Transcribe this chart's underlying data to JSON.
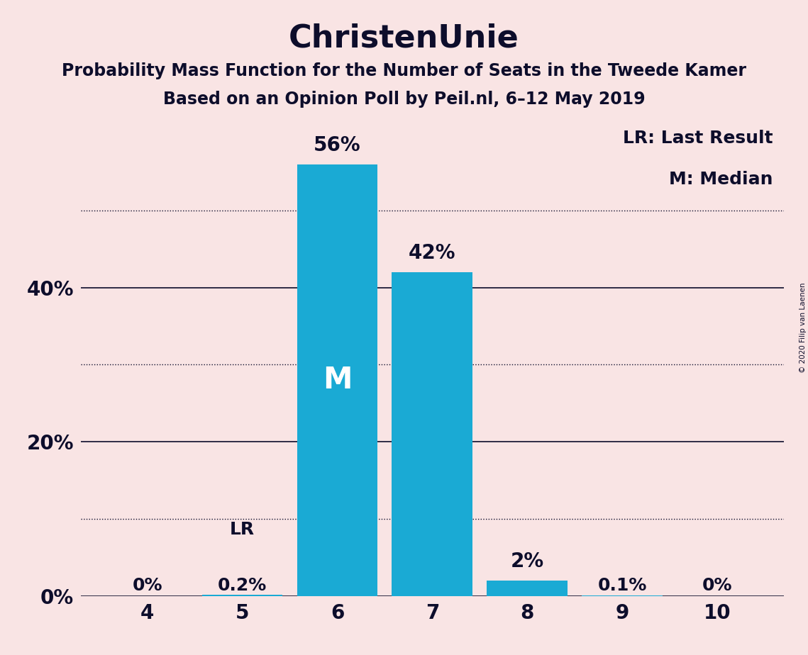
{
  "title": "ChristenUnie",
  "subtitle1": "Probability Mass Function for the Number of Seats in the Tweede Kamer",
  "subtitle2": "Based on an Opinion Poll by Peil.nl, 6–12 May 2019",
  "seats": [
    4,
    5,
    6,
    7,
    8,
    9,
    10
  ],
  "probabilities": [
    0.0,
    0.2,
    56.0,
    42.0,
    2.0,
    0.1,
    0.0
  ],
  "bar_color": "#1AAAD4",
  "background_color": "#F9E4E4",
  "median_seat": 6,
  "last_result_seat": 5,
  "legend_text1": "LR: Last Result",
  "legend_text2": "M: Median",
  "median_label": "M",
  "lr_label": "LR",
  "solid_lines": [
    0,
    20,
    40
  ],
  "dotted_lines": [
    10,
    30,
    50
  ],
  "labeled_ticks": [
    0,
    20,
    40
  ],
  "ylim": [
    0,
    62
  ],
  "copyright": "© 2020 Filip van Laenen",
  "bar_labels": [
    "0%",
    "0.2%",
    "56%",
    "42%",
    "2%",
    "0.1%",
    "0%"
  ],
  "title_fontsize": 32,
  "subtitle_fontsize": 17,
  "tick_fontsize": 20,
  "bar_label_fontsize": 20,
  "legend_fontsize": 18,
  "median_fontsize": 26
}
